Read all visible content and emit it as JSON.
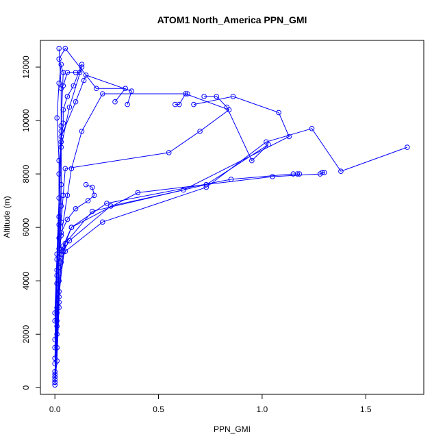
{
  "chart_data": {
    "type": "line",
    "title": "ATOM1 North_America PPN_GMI",
    "xlabel": "PPN_GMI",
    "ylabel": "Altitude (m)",
    "xlim": [
      -0.07,
      1.78
    ],
    "ylim": [
      -250,
      13000
    ],
    "xticks": [
      0.0,
      0.5,
      1.0,
      1.5
    ],
    "xtick_labels": [
      "0.0",
      "0.5",
      "1.0",
      "1.5"
    ],
    "yticks": [
      0,
      2000,
      4000,
      6000,
      8000,
      10000,
      12000
    ],
    "ytick_labels": [
      "0",
      "2000",
      "4000",
      "6000",
      "8000",
      "10000",
      "12000"
    ],
    "grid": false,
    "line_color": "#0000ff",
    "marker": "open-circle",
    "series": [
      {
        "x": [
          0.0,
          0.01,
          0.02,
          0.02,
          0.03,
          0.04,
          0.05,
          0.55,
          0.7,
          0.84,
          0.63,
          0.6,
          0.58
        ],
        "y": [
          200,
          1000,
          3000,
          5200,
          6200,
          7200,
          8200,
          8800,
          9600,
          10400,
          11000,
          10600,
          10600
        ]
      },
      {
        "x": [
          0.0,
          0.01,
          0.02,
          0.03,
          0.06,
          0.1,
          0.16,
          0.19,
          0.18,
          0.15
        ],
        "y": [
          500,
          2500,
          4500,
          5800,
          6300,
          6700,
          7000,
          7200,
          7500,
          7600
        ]
      },
      {
        "x": [
          0.0,
          0.01,
          0.02,
          0.03,
          0.08,
          0.4,
          1.05,
          1.28,
          1.3,
          1.29
        ],
        "y": [
          300,
          1500,
          3200,
          5000,
          6000,
          7300,
          7900,
          8000,
          8050,
          8050
        ]
      },
      {
        "x": [
          0.0,
          0.01,
          0.02,
          0.04,
          0.08,
          0.25,
          0.85,
          1.15,
          1.17,
          1.18
        ],
        "y": [
          400,
          2800,
          4900,
          5300,
          6000,
          6900,
          7800,
          8000,
          8000,
          8000
        ]
      },
      {
        "x": [
          0.0,
          0.01,
          0.03,
          0.05,
          0.23,
          0.73,
          1.02,
          1.24,
          1.38,
          1.7
        ],
        "y": [
          600,
          2300,
          4700,
          5100,
          6200,
          7500,
          9200,
          9700,
          8100,
          9000
        ]
      },
      {
        "x": [
          0.0,
          0.02,
          0.04,
          0.07,
          0.27,
          0.62,
          1.13,
          1.08,
          0.86,
          0.67
        ],
        "y": [
          200,
          3400,
          5100,
          5500,
          6800,
          7400,
          9400,
          10300,
          10900,
          10600
        ]
      },
      {
        "x": [
          0.0,
          0.02,
          0.05,
          0.18,
          0.73,
          1.03,
          0.95,
          0.83,
          0.78,
          0.72
        ],
        "y": [
          400,
          3600,
          5400,
          6600,
          7600,
          9100,
          8500,
          10500,
          10900,
          10900
        ]
      },
      {
        "x": [
          0.0,
          0.01,
          0.03,
          0.06,
          0.08,
          0.13,
          0.23,
          0.64
        ],
        "y": [
          1100,
          4200,
          5700,
          7200,
          8200,
          9600,
          11000,
          11000
        ]
      },
      {
        "x": [
          0.0,
          0.01,
          0.02,
          0.03,
          0.1,
          0.14,
          0.15,
          0.37,
          0.35
        ],
        "y": [
          1800,
          4400,
          6400,
          9400,
          10700,
          11500,
          11700,
          11100,
          10600
        ]
      },
      {
        "x": [
          0.0,
          0.01,
          0.02,
          0.03,
          0.07,
          0.13,
          0.12,
          0.1,
          0.06,
          0.04
        ],
        "y": [
          2800,
          5000,
          7100,
          9000,
          10500,
          12000,
          11800,
          11800,
          11800,
          11300
        ]
      },
      {
        "x": [
          0.0,
          0.01,
          0.03,
          0.03,
          0.04,
          0.02,
          0.05,
          0.2,
          0.34,
          0.29
        ],
        "y": [
          900,
          3000,
          6800,
          9800,
          11800,
          12300,
          12700,
          11200,
          11200,
          10700
        ]
      },
      {
        "x": [
          0.0,
          0.01,
          0.02,
          0.02,
          0.03,
          0.03,
          0.04,
          0.04,
          0.06,
          0.09,
          0.13
        ],
        "y": [
          100,
          2000,
          4000,
          5600,
          7600,
          9200,
          9900,
          10400,
          10900,
          11300,
          12100
        ]
      },
      {
        "x": [
          0.0,
          0.01,
          0.02,
          0.02,
          0.03,
          0.03,
          0.02
        ],
        "y": [
          2500,
          4800,
          6400,
          8000,
          9600,
          11200,
          12700
        ]
      },
      {
        "x": [
          0.0,
          0.01,
          0.02,
          0.02,
          0.01,
          0.02,
          0.03
        ],
        "y": [
          1500,
          3900,
          6100,
          8500,
          10100,
          11400,
          12100
        ]
      }
    ]
  }
}
